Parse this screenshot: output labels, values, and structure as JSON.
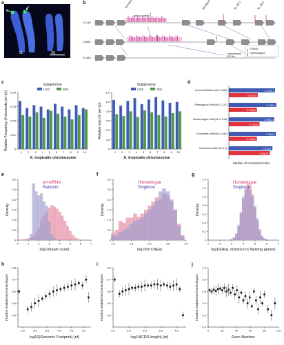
{
  "panel_letters": [
    "a",
    "b",
    "c",
    "d",
    "e",
    "f",
    "g",
    "h",
    "i",
    "j"
  ],
  "panel_a": {
    "labels": [
      "3L",
      "3S"
    ]
  },
  "panel_b": {
    "tracks": [
      "XL148",
      "XL56L",
      "XL45S"
    ],
    "top_labels": [
      "Xenopus-HoXb",
      "gene-cluster",
      "Xenopus-hoxd6",
      "XL-38.1",
      "XL-38.2"
    ],
    "legend": [
      {
        "label": "CNSyn",
        "color": "#cc3399"
      },
      {
        "label": "Homeologue",
        "color": "#3a7d44"
      }
    ],
    "scale_label": "200 kb"
  },
  "panel_c": {
    "subgenome_title": "Subgenome",
    "legend": [
      "LGS",
      "SGL"
    ]
  },
  "panel_d": {
    "xlabel": "Median of normalized ratio",
    "groups": [
      {
        "label": "Homeo/Related (N=2,398)",
        "blue": "1.07(L)",
        "red": "0.67(S)"
      },
      {
        "label": "Paralogous shift (N=1,217)",
        "blue": "1.10(L)",
        "red": "0.65(S)"
      },
      {
        "label": "Homeologue shift (N=1,218)",
        "blue": "1.05(L)",
        "red": "0.71(S)"
      },
      {
        "label": "Dollo/ants shift (N=2,442)",
        "blue": "1.09(L)",
        "red": "0.65(S)"
      },
      {
        "label": "Dollo/ants shift (N=1,4)",
        "blue": "1.01(L)",
        "red": "0.95(S)"
      }
    ]
  },
  "panel_e": {
    "legend": [
      "pri-mRNA",
      "Random"
    ]
  },
  "panel_f": {
    "legend": [
      "Homeologue",
      "Singleton"
    ]
  },
  "panel_g": {
    "legend": [
      "Homeologue",
      "Singleton"
    ]
  },
  "colors": {
    "blue": "#3f5bb3",
    "green": "#4e9a4a",
    "red": "#e0333d",
    "pink_fill": "#e58aa2",
    "lavender_fill": "#9f9ccc",
    "magenta": "#cc3399"
  },
  "chart_data": [
    {
      "id": "c-left",
      "type": "bar",
      "title": "Subgenome",
      "ylabel": "Relative Frequency (# elements per bp)",
      "xlabel": "X. tropicalis chromosome",
      "categories": [
        "1",
        "2",
        "3",
        "4",
        "5",
        "6",
        "7",
        "8",
        "9",
        "10"
      ],
      "ylim": [
        0,
        0.04
      ],
      "yticks": [
        "0",
        "0.01",
        "0.02",
        "0.03",
        "0.04"
      ],
      "series": [
        {
          "name": "LGS",
          "values": [
            0.034,
            0.029,
            0.031,
            0.03,
            0.028,
            0.032,
            0.03,
            0.028,
            0.031,
            0.029
          ]
        },
        {
          "name": "SGL",
          "values": [
            0.024,
            0.023,
            0.026,
            0.022,
            0.027,
            0.025,
            0.023,
            0.021,
            0.024,
            0.028
          ]
        }
      ]
    },
    {
      "id": "c-right",
      "type": "bar",
      "title": "Subgenome",
      "ylabel": "Relative size (% per bp)",
      "xlabel": "X. tropicalis chromosome",
      "categories": [
        "1",
        "2",
        "3",
        "4",
        "5",
        "6",
        "7",
        "8",
        "9",
        "10"
      ],
      "ylim": [
        0,
        1.2
      ],
      "yticks": [
        "0",
        "0.2",
        "0.4",
        "0.6",
        "0.8",
        "1.0",
        "1.2"
      ],
      "series": [
        {
          "name": "LGS",
          "values": [
            1.04,
            0.92,
            1.02,
            1.08,
            0.95,
            1.05,
            1.1,
            1.03,
            0.98,
            1.0
          ]
        },
        {
          "name": "SGL",
          "values": [
            0.74,
            0.7,
            0.8,
            0.68,
            0.82,
            0.78,
            0.72,
            0.69,
            0.76,
            0.8
          ]
        }
      ]
    },
    {
      "id": "e",
      "type": "area",
      "xlabel": "log10(read count)",
      "ylabel": "Density",
      "xlim": [
        0,
        7
      ],
      "ylim": [
        0,
        3.0
      ],
      "xticks": [
        "0",
        "1",
        "2",
        "3",
        "4",
        "5",
        "6",
        "7"
      ],
      "yticks": [
        "0",
        "0.5",
        "1.0",
        "1.5",
        "2.0",
        "2.5",
        "3.0"
      ],
      "x": [
        0.25,
        0.5,
        0.75,
        1.0,
        1.25,
        1.5,
        1.75,
        2.0,
        2.25,
        2.5,
        2.75,
        3.0,
        3.25,
        3.5,
        3.75,
        4.0,
        4.25,
        4.5,
        4.75,
        5.0,
        5.25,
        5.5,
        5.75,
        6.0
      ],
      "series": [
        {
          "name": "pri-mRNA",
          "values": [
            0.02,
            0.03,
            0.05,
            0.08,
            0.12,
            0.2,
            0.35,
            0.6,
            0.95,
            1.2,
            1.4,
            1.6,
            1.72,
            1.65,
            1.55,
            1.4,
            1.2,
            0.95,
            0.7,
            0.45,
            0.25,
            0.12,
            0.05,
            0.02
          ]
        },
        {
          "name": "Random",
          "values": [
            0.0,
            0.0,
            0.0,
            0.02,
            0.3,
            2.8,
            2.4,
            2.2,
            2.3,
            1.9,
            1.7,
            0.9,
            0.3,
            0.1,
            0.03,
            0.0,
            0.0,
            0.0,
            0.0,
            0.0,
            0.0,
            0.0,
            0.0,
            0.0
          ]
        }
      ]
    },
    {
      "id": "f",
      "type": "area",
      "xlabel": "log10(# CNEs)",
      "ylabel": "Density",
      "xlim": [
        1.0,
        3.0
      ],
      "ylim": [
        0,
        3.0
      ],
      "xticks": [
        "1.0",
        "1.5",
        "2.0",
        "2.5",
        "3.0"
      ],
      "yticks": [
        "0",
        "0.5",
        "1.0",
        "1.5",
        "2.0",
        "2.5",
        "3.0"
      ],
      "x": [
        1.0,
        1.1,
        1.2,
        1.3,
        1.4,
        1.5,
        1.6,
        1.7,
        1.8,
        1.9,
        2.0,
        2.1,
        2.2,
        2.3,
        2.4,
        2.5,
        2.6,
        2.7,
        2.8,
        2.9
      ],
      "series": [
        {
          "name": "Homeologue",
          "values": [
            0.35,
            0.5,
            0.95,
            0.85,
            1.1,
            1.1,
            1.3,
            1.15,
            1.3,
            1.5,
            1.7,
            1.9,
            2.1,
            2.0,
            2.3,
            2.2,
            1.9,
            1.5,
            0.8,
            0.25
          ]
        },
        {
          "name": "Singleton",
          "values": [
            0.2,
            0.25,
            0.4,
            0.5,
            0.6,
            0.8,
            0.95,
            1.0,
            1.1,
            1.3,
            1.5,
            1.7,
            1.95,
            2.4,
            2.55,
            2.4,
            2.0,
            1.5,
            0.7,
            0.2
          ]
        }
      ]
    },
    {
      "id": "g",
      "type": "area",
      "xlabel": "log10(Avg. distance to flanking genes)",
      "ylabel": "Density",
      "xlim": [
        1,
        7
      ],
      "ylim": [
        0,
        1.4
      ],
      "xticks": [
        "1",
        "2",
        "3",
        "4",
        "5",
        "6",
        "7"
      ],
      "yticks": [
        "0",
        "0.2",
        "0.4",
        "0.6",
        "0.8",
        "1.0",
        "1.2",
        "1.4"
      ],
      "x": [
        3.0,
        3.2,
        3.4,
        3.6,
        3.8,
        4.0,
        4.2,
        4.4,
        4.6,
        4.8,
        5.0,
        5.2,
        5.4,
        5.6,
        5.8,
        6.0
      ],
      "series": [
        {
          "name": "Homeologue",
          "values": [
            0.02,
            0.05,
            0.12,
            0.3,
            0.6,
            0.95,
            1.2,
            1.3,
            1.25,
            1.05,
            0.75,
            0.45,
            0.2,
            0.08,
            0.03,
            0.01
          ]
        },
        {
          "name": "Singleton",
          "values": [
            0.02,
            0.06,
            0.15,
            0.35,
            0.65,
            1.0,
            1.15,
            1.2,
            1.15,
            1.0,
            0.78,
            0.5,
            0.25,
            0.1,
            0.04,
            0.01
          ]
        }
      ]
    },
    {
      "id": "h",
      "type": "scatter",
      "xlabel": "log10(Genomic Footprint) (nt)",
      "ylabel": "Fraction retained as homeologues",
      "xlim": [
        2.3,
        5.3
      ],
      "ylim": [
        0.3,
        0.8
      ],
      "xticks": [
        "2.5",
        "3.0",
        "3.5",
        "4.0",
        "4.5",
        "5.0",
        "5.5"
      ],
      "yticks": [
        "0.4",
        "0.5",
        "0.6",
        "0.7",
        "0.8"
      ],
      "x": [
        2.35,
        2.7,
        2.85,
        3.0,
        3.15,
        3.3,
        3.45,
        3.6,
        3.75,
        3.9,
        4.05,
        4.2,
        4.35,
        4.5,
        4.65,
        4.8,
        4.95,
        5.1,
        5.2
      ],
      "y": [
        0.6,
        0.45,
        0.47,
        0.5,
        0.52,
        0.54,
        0.56,
        0.58,
        0.6,
        0.61,
        0.62,
        0.63,
        0.64,
        0.65,
        0.66,
        0.67,
        0.65,
        0.7,
        0.55
      ]
    },
    {
      "id": "i",
      "type": "scatter",
      "xlabel": "log10(CDS length) (nt)",
      "ylabel": "Fraction retained as homeologues",
      "xlim": [
        2.0,
        4.3
      ],
      "ylim": [
        0.3,
        0.8
      ],
      "xticks": [
        "2.0",
        "2.5",
        "3.0",
        "3.5",
        "4.0"
      ],
      "yticks": [
        "0.4",
        "0.5",
        "0.6",
        "0.7",
        "0.8"
      ],
      "x": [
        2.05,
        2.2,
        2.3,
        2.4,
        2.5,
        2.6,
        2.7,
        2.8,
        2.9,
        3.0,
        3.1,
        3.2,
        3.3,
        3.4,
        3.5,
        3.6,
        3.7,
        3.8,
        3.9,
        4.0,
        4.1,
        4.2
      ],
      "y": [
        0.7,
        0.58,
        0.6,
        0.61,
        0.62,
        0.63,
        0.63,
        0.64,
        0.64,
        0.65,
        0.65,
        0.65,
        0.66,
        0.66,
        0.65,
        0.66,
        0.65,
        0.64,
        0.65,
        0.66,
        0.62,
        0.4
      ]
    },
    {
      "id": "j",
      "type": "scatter",
      "xlabel": "Exon Number",
      "ylabel": "Fraction retained as homeologues",
      "xlim": [
        0,
        100
      ],
      "ylim": [
        0.0,
        1.0
      ],
      "xticks": [
        "0",
        "20",
        "40",
        "60",
        "80",
        "100"
      ],
      "yticks": [
        "0.0",
        "0.2",
        "0.4",
        "0.6",
        "0.8",
        "1.0"
      ],
      "x": [
        2,
        5,
        8,
        11,
        14,
        17,
        20,
        23,
        26,
        29,
        32,
        35,
        38,
        41,
        44,
        47,
        50,
        53,
        56,
        59,
        62,
        65,
        68,
        71,
        74,
        77,
        80,
        85,
        90,
        95
      ],
      "y": [
        0.62,
        0.6,
        0.63,
        0.61,
        0.64,
        0.65,
        0.62,
        0.66,
        0.6,
        0.63,
        0.58,
        0.66,
        0.55,
        0.62,
        0.5,
        0.58,
        0.45,
        0.52,
        0.4,
        0.5,
        0.35,
        0.6,
        0.45,
        0.3,
        0.5,
        0.4,
        0.55,
        0.3,
        0.2,
        0.4
      ]
    }
  ]
}
